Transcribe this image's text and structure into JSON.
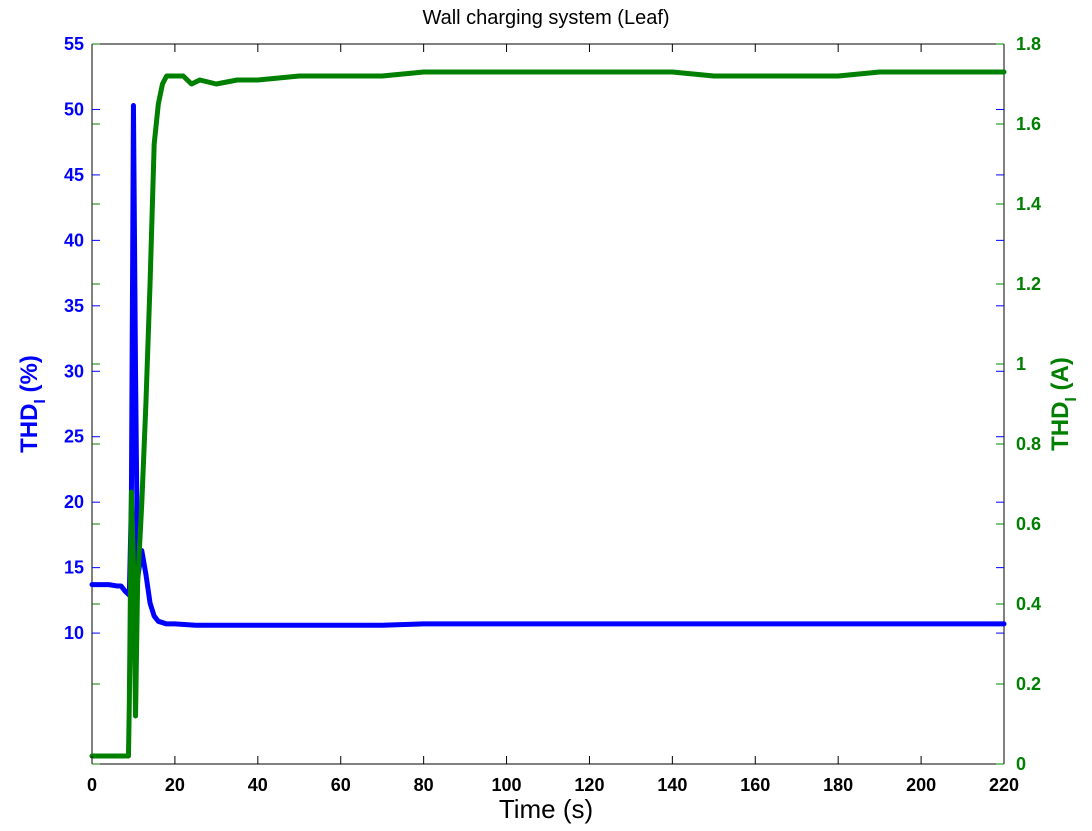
{
  "chart_data": {
    "type": "line",
    "title": "Wall charging system (Leaf)",
    "xlabel": "Time (s)",
    "ylabel_left": {
      "main": "THD",
      "sub": "I",
      "unit": " (%)"
    },
    "ylabel_right": {
      "main": "THD",
      "sub": "I",
      "unit": " (A)"
    },
    "xlim": [
      0,
      220
    ],
    "ylim_left": [
      0,
      55
    ],
    "ylim_right": [
      0,
      1.8
    ],
    "xticks": [
      0,
      20,
      40,
      60,
      80,
      100,
      120,
      140,
      160,
      180,
      200,
      220
    ],
    "yticks_left": [
      10,
      15,
      20,
      25,
      30,
      35,
      40,
      45,
      50,
      55
    ],
    "yticks_right": [
      0,
      0.2,
      0.4,
      0.6,
      0.8,
      1,
      1.2,
      1.4,
      1.6,
      1.8
    ],
    "grid": false,
    "colors": {
      "left": "#0000ff",
      "right": "#008000"
    },
    "series": [
      {
        "axis": "left",
        "x": [
          0,
          2,
          4,
          6,
          7,
          8,
          9,
          9.5,
          10,
          10.5,
          11,
          12,
          13,
          14,
          15,
          16,
          18,
          20,
          25,
          30,
          40,
          50,
          60,
          70,
          80,
          90,
          100,
          110,
          120,
          130,
          140,
          150,
          160,
          170,
          180,
          190,
          200,
          210,
          220
        ],
        "y": [
          13.7,
          13.7,
          13.7,
          13.6,
          13.6,
          13.2,
          12.9,
          20,
          50.3,
          30,
          14.2,
          16.3,
          14.5,
          12.3,
          11.3,
          10.9,
          10.7,
          10.7,
          10.6,
          10.6,
          10.6,
          10.6,
          10.6,
          10.6,
          10.7,
          10.7,
          10.7,
          10.7,
          10.7,
          10.7,
          10.7,
          10.7,
          10.7,
          10.7,
          10.7,
          10.7,
          10.7,
          10.7,
          10.7
        ]
      },
      {
        "axis": "right",
        "x": [
          0,
          4,
          8,
          8.8,
          9,
          9.5,
          10,
          10.5,
          11,
          12,
          13,
          14,
          15,
          16,
          17,
          18,
          20,
          22,
          24,
          26,
          30,
          35,
          40,
          50,
          60,
          70,
          80,
          90,
          100,
          110,
          120,
          130,
          140,
          150,
          160,
          170,
          180,
          190,
          200,
          210,
          220
        ],
        "y": [
          0.02,
          0.02,
          0.02,
          0.02,
          0.15,
          0.68,
          0.5,
          0.12,
          0.45,
          0.65,
          0.9,
          1.2,
          1.55,
          1.65,
          1.7,
          1.72,
          1.72,
          1.72,
          1.7,
          1.71,
          1.7,
          1.71,
          1.71,
          1.72,
          1.72,
          1.72,
          1.73,
          1.73,
          1.73,
          1.73,
          1.73,
          1.73,
          1.73,
          1.72,
          1.72,
          1.72,
          1.72,
          1.73,
          1.73,
          1.73,
          1.73
        ]
      }
    ]
  }
}
